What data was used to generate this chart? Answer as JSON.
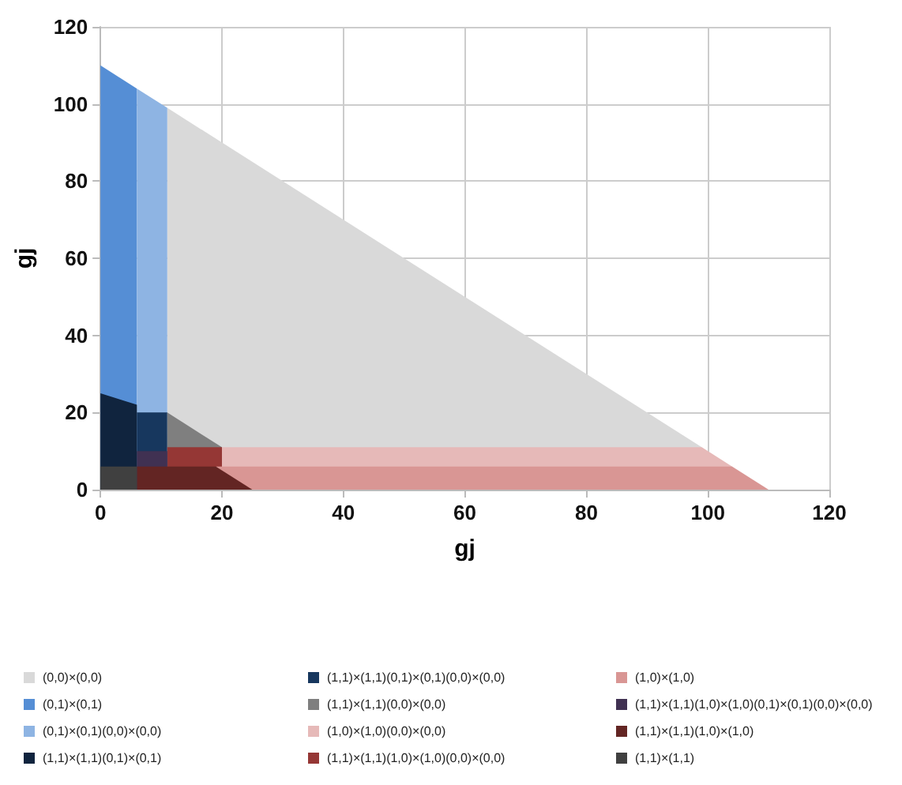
{
  "chart_data": {
    "type": "area",
    "xlabel": "gj",
    "ylabel": "gj",
    "xlim": [
      0,
      120
    ],
    "xticks": [
      0,
      20,
      40,
      60,
      80,
      100,
      120
    ],
    "ylim": [
      0,
      120
    ],
    "yticks": [
      0,
      20,
      40,
      60,
      80,
      100,
      120
    ],
    "grid": true,
    "legend": "bottom",
    "marker": "none",
    "series": [
      {
        "name": "(0,0)×(0,0)",
        "color": "#d9d9d9",
        "x": [
          11,
          99
        ],
        "values": [
          99,
          11
        ]
      },
      {
        "name": "(0,1)×(0,1)",
        "color": "#558ed5",
        "x": [
          0,
          6
        ],
        "values": [
          110,
          104
        ]
      },
      {
        "name": "(0,1)×(0,1)(0,0)×(0,0)",
        "color": "#8eb4e3",
        "x": [
          6,
          11
        ],
        "values": [
          104,
          99
        ]
      },
      {
        "name": "(1,1)×(1,1)(0,1)×(0,1)",
        "color": "#10243e",
        "x": [
          0,
          6
        ],
        "values": [
          25,
          22
        ]
      },
      {
        "name": "(1,1)×(1,1)(0,1)×(0,1)(0,0)×(0,0)",
        "color": "#17375e",
        "x": [
          6,
          11
        ],
        "values": [
          20,
          20
        ]
      },
      {
        "name": "(1,1)×(1,1)(0,0)×(0,0)",
        "color": "#7f7f7f",
        "x": [
          11,
          20
        ],
        "values": [
          20,
          11
        ]
      },
      {
        "name": "(1,0)×(1,0)(0,0)×(0,0)",
        "color": "#e6b9b8",
        "x": [
          20,
          99,
          104
        ],
        "values": [
          11,
          11,
          6
        ]
      },
      {
        "name": "(1,1)×(1,1)(1,0)×(1,0)(0,0)×(0,0)",
        "color": "#953735",
        "x": [
          11,
          20
        ],
        "values": [
          11,
          11
        ]
      },
      {
        "name": "(1,0)×(1,0)",
        "color": "#d99694",
        "x": [
          19,
          104,
          110
        ],
        "values": [
          6,
          6,
          0
        ]
      },
      {
        "name": "(1,1)×(1,1)(1,0)×(1,0)(0,1)×(0,1)(0,0)×(0,0)",
        "color": "#403152",
        "x": [
          6,
          11
        ],
        "values": [
          10,
          10
        ]
      },
      {
        "name": "(1,1)×(1,1)(1,0)×(1,0)",
        "color": "#632523",
        "x": [
          6,
          19,
          25
        ],
        "values": [
          6,
          6,
          0
        ]
      },
      {
        "name": "(1,1)×(1,1)",
        "color": "#404040",
        "x": [
          0,
          6
        ],
        "values": [
          6,
          6
        ]
      }
    ]
  }
}
